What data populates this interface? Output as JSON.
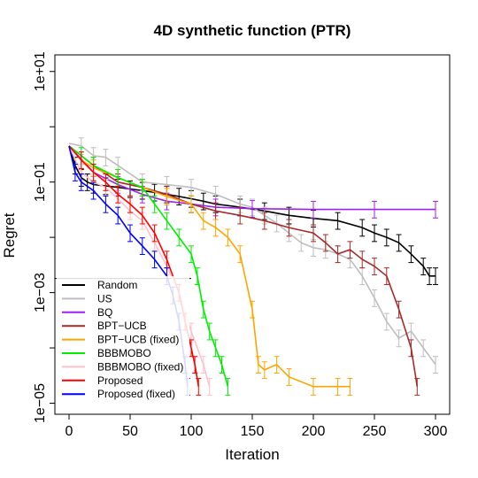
{
  "chart_data": {
    "type": "line",
    "title": "4D synthetic function (PTR)",
    "xlabel": "Iteration",
    "ylabel": "Regret",
    "y_scale": "log",
    "xlim": [
      0,
      300
    ],
    "ylim_log10": [
      -5.2,
      1.3
    ],
    "xticks": [
      0,
      50,
      100,
      150,
      200,
      250,
      300
    ],
    "xtick_labels": [
      "0",
      "50",
      "100",
      "150",
      "200",
      "250",
      "300"
    ],
    "yticks_log10": [
      1,
      -1,
      -3,
      -5
    ],
    "ytick_labels": [
      "1e+01",
      "1e−01",
      "1e−03",
      "1e−05"
    ],
    "minor_yticks_log10": [
      0,
      -2,
      -4
    ],
    "grid": false,
    "legend_position": "bottom-left",
    "reference_line": {
      "y": 0.0018,
      "x_end": 100
    },
    "series": [
      {
        "name": "Random",
        "color": "#000000",
        "x": [
          0,
          5,
          10,
          15,
          20,
          30,
          40,
          50,
          60,
          70,
          80,
          90,
          100,
          110,
          120,
          140,
          160,
          180,
          200,
          220,
          240,
          250,
          260,
          270,
          280,
          290,
          295,
          300
        ],
        "y": [
          0.45,
          0.2,
          0.12,
          0.1,
          0.09,
          0.085,
          0.08,
          0.075,
          0.07,
          0.065,
          0.06,
          0.055,
          0.05,
          0.045,
          0.04,
          0.035,
          0.03,
          0.025,
          0.022,
          0.02,
          0.015,
          0.012,
          0.01,
          0.008,
          0.005,
          0.003,
          0.002,
          0.002
        ],
        "error_bars": true
      },
      {
        "name": "US",
        "color": "#BEBEBE",
        "x": [
          0,
          10,
          20,
          30,
          40,
          60,
          80,
          100,
          120,
          140,
          150,
          160,
          170,
          180,
          190,
          200,
          210,
          220,
          230,
          240,
          250,
          260,
          270,
          280,
          290,
          300
        ],
        "y": [
          0.5,
          0.45,
          0.3,
          0.28,
          0.2,
          0.1,
          0.09,
          0.08,
          0.06,
          0.04,
          0.035,
          0.025,
          0.018,
          0.012,
          0.008,
          0.0065,
          0.006,
          0.005,
          0.004,
          0.002,
          0.0008,
          0.0003,
          0.00015,
          0.0002,
          0.0001,
          5e-05
        ],
        "error_bars": true
      },
      {
        "name": "BQ",
        "color": "#A020F0",
        "x": [
          0,
          20,
          40,
          60,
          80,
          100,
          120,
          150,
          200,
          250,
          300
        ],
        "y": [
          0.45,
          0.15,
          0.09,
          0.06,
          0.045,
          0.04,
          0.035,
          0.033,
          0.032,
          0.032,
          0.032
        ],
        "error_bars": true
      },
      {
        "name": "BPT−UCB",
        "color": "#A52A2A",
        "x": [
          0,
          20,
          40,
          60,
          80,
          100,
          120,
          140,
          160,
          180,
          200,
          210,
          220,
          230,
          240,
          250,
          260,
          270,
          280,
          285
        ],
        "y": [
          0.45,
          0.2,
          0.1,
          0.08,
          0.06,
          0.04,
          0.03,
          0.025,
          0.02,
          0.015,
          0.012,
          0.008,
          0.005,
          0.006,
          0.004,
          0.003,
          0.002,
          0.0005,
          0.0001,
          2e-05
        ],
        "error_bars": true
      },
      {
        "name": "BPT−UCB (fixed)",
        "color": "#FFA500",
        "x": [
          0,
          10,
          20,
          40,
          60,
          80,
          100,
          110,
          120,
          130,
          140,
          150,
          155,
          160,
          170,
          180,
          200,
          220,
          230
        ],
        "y": [
          0.45,
          0.25,
          0.18,
          0.12,
          0.08,
          0.055,
          0.04,
          0.02,
          0.015,
          0.01,
          0.005,
          0.0005,
          5e-05,
          4e-05,
          5e-05,
          3e-05,
          2e-05,
          2e-05,
          2e-05
        ],
        "error_bars": true
      },
      {
        "name": "BBBMOBO",
        "color": "#00EE00",
        "x": [
          0,
          10,
          20,
          40,
          60,
          70,
          80,
          90,
          100,
          105,
          110,
          115,
          120,
          125,
          130
        ],
        "y": [
          0.45,
          0.3,
          0.2,
          0.12,
          0.08,
          0.04,
          0.02,
          0.01,
          0.005,
          0.002,
          0.0005,
          0.0002,
          0.0001,
          5e-05,
          2e-05
        ],
        "error_bars": true
      },
      {
        "name": "BBBMOBO (fixed)",
        "color": "#FFC0CB",
        "x": [
          0,
          10,
          20,
          30,
          40,
          50,
          60,
          70,
          80,
          90,
          100,
          110,
          115
        ],
        "y": [
          0.45,
          0.15,
          0.1,
          0.08,
          0.05,
          0.03,
          0.02,
          0.008,
          0.003,
          0.001,
          0.0002,
          5e-05,
          2e-05
        ],
        "error_bars": true
      },
      {
        "name": "Proposed",
        "color": "#FF0000",
        "x": [
          0,
          10,
          20,
          30,
          40,
          50,
          60,
          70,
          80,
          90,
          95,
          100,
          103,
          106
        ],
        "y": [
          0.45,
          0.25,
          0.15,
          0.1,
          0.06,
          0.04,
          0.025,
          0.012,
          0.004,
          0.001,
          0.0003,
          0.0001,
          5e-05,
          2e-05
        ],
        "error_bars": true
      },
      {
        "name": "Proposed (fixed)",
        "color": "#0000FF",
        "x": [
          0,
          5,
          10,
          20,
          30,
          40,
          50,
          60,
          70,
          80,
          85,
          90,
          95,
          97
        ],
        "y": [
          0.45,
          0.15,
          0.1,
          0.07,
          0.04,
          0.025,
          0.012,
          0.007,
          0.004,
          0.002,
          0.0009,
          0.0003,
          5e-05,
          2e-05
        ],
        "error_bars": true
      }
    ]
  }
}
